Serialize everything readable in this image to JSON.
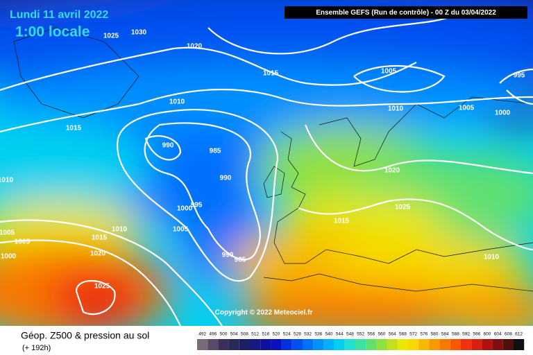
{
  "header": {
    "date": "Lundi 11 avril 2022",
    "time": "1:00 locale",
    "run": "Ensemble GEFS  (Run de contrôle)  - 00 Z du 03/04/2022"
  },
  "isobar_labels": [
    1030,
    1025,
    1020,
    1015,
    1005,
    995,
    1010,
    1010,
    1005,
    1000,
    1015,
    990,
    985,
    990,
    1020,
    1010,
    995,
    1000,
    1025,
    1015,
    1010,
    1005,
    1005,
    1005,
    1015,
    1020,
    1000,
    990,
    985,
    1010,
    1025
  ],
  "copyright": "Copyright © 2022 Meteociel.fr",
  "footer": {
    "title": "Géop. Z500 & pression au sol",
    "lead": "(+ 192h)"
  },
  "colorbar": {
    "labels": [
      492,
      496,
      500,
      504,
      508,
      512,
      516,
      520,
      524,
      528,
      532,
      536,
      540,
      544,
      548,
      552,
      556,
      560,
      564,
      568,
      572,
      576,
      580,
      584,
      588,
      592,
      596,
      600,
      604,
      608,
      612
    ],
    "colors": [
      "#7a6a7a",
      "#5a4a6a",
      "#3c2f5c",
      "#2a2a5a",
      "#1e2060",
      "#181a80",
      "#1010a0",
      "#0a10c0",
      "#0030e0",
      "#0050f0",
      "#0070ff",
      "#0090ff",
      "#00b0ff",
      "#00d0f0",
      "#20e0d0",
      "#40e0a0",
      "#60e070",
      "#90e040",
      "#c0e020",
      "#e8e800",
      "#f8d800",
      "#f8b800",
      "#f89800",
      "#f87800",
      "#f85800",
      "#f03010",
      "#d82010",
      "#b01010",
      "#801010",
      "#501010",
      "#101010"
    ]
  }
}
